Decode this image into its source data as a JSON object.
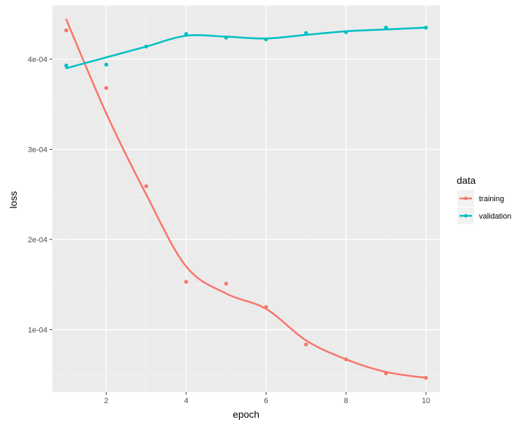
{
  "chart_data": {
    "type": "line",
    "title": "",
    "xlabel": "epoch",
    "ylabel": "loss",
    "x": [
      1,
      2,
      3,
      4,
      5,
      6,
      7,
      8,
      9,
      10
    ],
    "xlim": [
      0.65,
      10.35
    ],
    "ylim": [
      3.08e-05,
      0.0004595
    ],
    "x_ticks": [
      2,
      4,
      6,
      8,
      10
    ],
    "x_tick_labels": [
      "2",
      "4",
      "6",
      "8",
      "10"
    ],
    "y_ticks": [
      0.0001,
      0.0002,
      0.0003,
      0.0004
    ],
    "y_tick_labels": [
      "1e-04",
      "2e-04",
      "3e-04",
      "4e-04"
    ],
    "grid": true,
    "legend_position": "right",
    "legend_title": "data",
    "series": [
      {
        "name": "training",
        "color": "#F8766D",
        "values": [
          0.000432,
          0.000368,
          0.000259,
          0.000153,
          0.000151,
          0.000125,
          8.35e-05,
          6.7e-05,
          5.15e-05,
          4.65e-05
        ],
        "smooth": [
          0.000444,
          0.00034,
          0.00025,
          0.00017,
          0.00014,
          0.000123,
          8.8e-05,
          6.7e-05,
          5.3e-05,
          4.65e-05
        ]
      },
      {
        "name": "validation",
        "color": "#00BFC4",
        "values": [
          0.000393,
          0.000394,
          0.000414,
          0.000428,
          0.000424,
          0.000422,
          0.000429,
          0.00043,
          0.000435,
          0.000435
        ],
        "smooth": [
          0.00039,
          0.000402,
          0.000414,
          0.000426,
          0.000425,
          0.000423,
          0.000427,
          0.000431,
          0.000433,
          0.000435
        ]
      }
    ]
  },
  "legend": {
    "title": "data",
    "items": [
      {
        "label": "training",
        "color": "#F8766D"
      },
      {
        "label": "validation",
        "color": "#00BFC4"
      }
    ]
  },
  "axes": {
    "x_title": "epoch",
    "y_title": "loss"
  }
}
